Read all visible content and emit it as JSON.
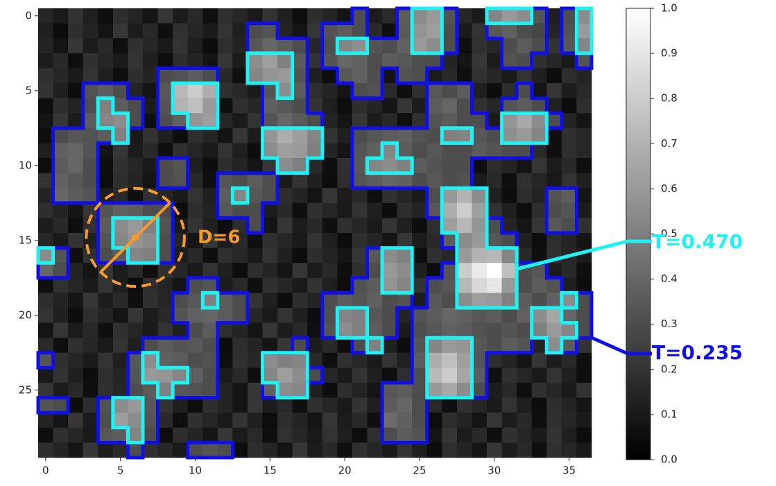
{
  "chart_data": {
    "type": "heatmap",
    "colormap": "gray",
    "values": [
      [
        0.15,
        0.1,
        0.2,
        0.12,
        0.05,
        0.18,
        0.14,
        0.08,
        0.21,
        0.11,
        0.16,
        0.06,
        0.19,
        0.15,
        0.1,
        0.2,
        0.12,
        0.05,
        0.18,
        0.14,
        0.08,
        0.3,
        0.11,
        0.16,
        0.36,
        0.55,
        0.6,
        0.33,
        0.15,
        0.1,
        0.52,
        0.6,
        0.55,
        0.33,
        0.12,
        0.3,
        0.55
      ],
      [
        0.12,
        0.05,
        0.18,
        0.14,
        0.08,
        0.21,
        0.11,
        0.16,
        0.06,
        0.19,
        0.15,
        0.1,
        0.2,
        0.12,
        0.3,
        0.33,
        0.14,
        0.08,
        0.21,
        0.32,
        0.36,
        0.3,
        0.16,
        0.06,
        0.35,
        0.58,
        0.62,
        0.3,
        0.1,
        0.2,
        0.34,
        0.38,
        0.3,
        0.28,
        0.14,
        0.32,
        0.6
      ],
      [
        0.14,
        0.08,
        0.21,
        0.11,
        0.16,
        0.06,
        0.19,
        0.15,
        0.1,
        0.2,
        0.12,
        0.05,
        0.18,
        0.14,
        0.34,
        0.4,
        0.36,
        0.3,
        0.15,
        0.3,
        0.52,
        0.56,
        0.33,
        0.3,
        0.38,
        0.6,
        0.55,
        0.3,
        0.06,
        0.19,
        0.15,
        0.3,
        0.36,
        0.3,
        0.2,
        0.34,
        0.52
      ],
      [
        0.11,
        0.16,
        0.06,
        0.19,
        0.15,
        0.1,
        0.2,
        0.12,
        0.05,
        0.18,
        0.14,
        0.08,
        0.21,
        0.11,
        0.55,
        0.62,
        0.5,
        0.35,
        0.2,
        0.33,
        0.4,
        0.38,
        0.3,
        0.36,
        0.34,
        0.3,
        0.3,
        0.14,
        0.08,
        0.21,
        0.11,
        0.32,
        0.3,
        0.19,
        0.15,
        0.1,
        0.33
      ],
      [
        0.19,
        0.15,
        0.1,
        0.2,
        0.12,
        0.05,
        0.18,
        0.14,
        0.3,
        0.32,
        0.36,
        0.3,
        0.16,
        0.06,
        0.52,
        0.58,
        0.6,
        0.33,
        0.12,
        0.05,
        0.34,
        0.38,
        0.3,
        0.08,
        0.32,
        0.3,
        0.11,
        0.16,
        0.06,
        0.19,
        0.15,
        0.1,
        0.2,
        0.12,
        0.05,
        0.18,
        0.14
      ],
      [
        0.2,
        0.12,
        0.05,
        0.32,
        0.36,
        0.3,
        0.14,
        0.08,
        0.34,
        0.72,
        0.8,
        0.68,
        0.19,
        0.15,
        0.1,
        0.33,
        0.55,
        0.36,
        0.18,
        0.14,
        0.08,
        0.3,
        0.32,
        0.16,
        0.06,
        0.19,
        0.34,
        0.3,
        0.36,
        0.12,
        0.05,
        0.18,
        0.3,
        0.08,
        0.21,
        0.11,
        0.16
      ],
      [
        0.05,
        0.18,
        0.14,
        0.3,
        0.5,
        0.36,
        0.3,
        0.11,
        0.33,
        0.7,
        0.75,
        0.6,
        0.06,
        0.19,
        0.15,
        0.38,
        0.34,
        0.3,
        0.2,
        0.12,
        0.05,
        0.18,
        0.14,
        0.08,
        0.21,
        0.11,
        0.36,
        0.4,
        0.3,
        0.19,
        0.15,
        0.33,
        0.36,
        0.3,
        0.12,
        0.05,
        0.18
      ],
      [
        0.08,
        0.21,
        0.11,
        0.36,
        0.52,
        0.55,
        0.3,
        0.06,
        0.3,
        0.38,
        0.58,
        0.62,
        0.15,
        0.1,
        0.2,
        0.33,
        0.4,
        0.35,
        0.3,
        0.14,
        0.08,
        0.21,
        0.11,
        0.16,
        0.06,
        0.19,
        0.33,
        0.36,
        0.3,
        0.3,
        0.1,
        0.58,
        0.66,
        0.55,
        0.3,
        0.14,
        0.08
      ],
      [
        0.06,
        0.3,
        0.34,
        0.32,
        0.36,
        0.5,
        0.1,
        0.2,
        0.12,
        0.05,
        0.18,
        0.14,
        0.08,
        0.21,
        0.11,
        0.58,
        0.68,
        0.62,
        0.52,
        0.2,
        0.12,
        0.3,
        0.34,
        0.36,
        0.38,
        0.32,
        0.3,
        0.5,
        0.52,
        0.34,
        0.3,
        0.56,
        0.6,
        0.52,
        0.06,
        0.19,
        0.15
      ],
      [
        0.12,
        0.38,
        0.4,
        0.33,
        0.08,
        0.21,
        0.11,
        0.16,
        0.06,
        0.19,
        0.15,
        0.1,
        0.2,
        0.12,
        0.05,
        0.55,
        0.62,
        0.6,
        0.5,
        0.14,
        0.08,
        0.33,
        0.38,
        0.52,
        0.36,
        0.3,
        0.34,
        0.3,
        0.3,
        0.36,
        0.33,
        0.3,
        0.3,
        0.16,
        0.06,
        0.19,
        0.15
      ],
      [
        0.05,
        0.36,
        0.4,
        0.3,
        0.06,
        0.19,
        0.15,
        0.1,
        0.3,
        0.33,
        0.12,
        0.05,
        0.18,
        0.14,
        0.08,
        0.21,
        0.55,
        0.5,
        0.16,
        0.06,
        0.19,
        0.34,
        0.52,
        0.55,
        0.5,
        0.36,
        0.33,
        0.3,
        0.3,
        0.05,
        0.18,
        0.14,
        0.08,
        0.21,
        0.11,
        0.16,
        0.06
      ],
      [
        0.2,
        0.38,
        0.34,
        0.3,
        0.05,
        0.18,
        0.14,
        0.08,
        0.3,
        0.32,
        0.16,
        0.06,
        0.33,
        0.3,
        0.36,
        0.3,
        0.1,
        0.2,
        0.12,
        0.05,
        0.18,
        0.33,
        0.36,
        0.4,
        0.38,
        0.3,
        0.34,
        0.3,
        0.32,
        0.11,
        0.16,
        0.06,
        0.19,
        0.15,
        0.1,
        0.2,
        0.12
      ],
      [
        0.14,
        0.4,
        0.36,
        0.33,
        0.11,
        0.16,
        0.06,
        0.19,
        0.15,
        0.1,
        0.2,
        0.12,
        0.36,
        0.52,
        0.34,
        0.3,
        0.18,
        0.14,
        0.08,
        0.21,
        0.11,
        0.16,
        0.06,
        0.19,
        0.15,
        0.1,
        0.3,
        0.6,
        0.7,
        0.55,
        0.12,
        0.05,
        0.18,
        0.14,
        0.32,
        0.36,
        0.08
      ],
      [
        0.18,
        0.14,
        0.08,
        0.21,
        0.33,
        0.38,
        0.36,
        0.3,
        0.3,
        0.05,
        0.18,
        0.14,
        0.34,
        0.3,
        0.3,
        0.11,
        0.16,
        0.06,
        0.19,
        0.15,
        0.1,
        0.2,
        0.12,
        0.05,
        0.18,
        0.14,
        0.34,
        0.68,
        0.8,
        0.62,
        0.2,
        0.12,
        0.05,
        0.18,
        0.3,
        0.33,
        0.11
      ],
      [
        0.11,
        0.16,
        0.06,
        0.19,
        0.36,
        0.55,
        0.6,
        0.5,
        0.33,
        0.1,
        0.2,
        0.12,
        0.05,
        0.18,
        0.3,
        0.08,
        0.21,
        0.11,
        0.16,
        0.06,
        0.19,
        0.15,
        0.1,
        0.2,
        0.12,
        0.05,
        0.18,
        0.62,
        0.72,
        0.58,
        0.3,
        0.14,
        0.08,
        0.21,
        0.34,
        0.3,
        0.19
      ],
      [
        0.15,
        0.1,
        0.2,
        0.12,
        0.33,
        0.52,
        0.58,
        0.55,
        0.3,
        0.14,
        0.08,
        0.21,
        0.11,
        0.16,
        0.06,
        0.19,
        0.15,
        0.1,
        0.2,
        0.12,
        0.05,
        0.18,
        0.14,
        0.08,
        0.21,
        0.11,
        0.16,
        0.36,
        0.55,
        0.6,
        0.34,
        0.3,
        0.12,
        0.05,
        0.18,
        0.14,
        0.08
      ],
      [
        0.55,
        0.33,
        0.06,
        0.19,
        0.3,
        0.36,
        0.52,
        0.5,
        0.3,
        0.11,
        0.16,
        0.06,
        0.19,
        0.15,
        0.1,
        0.2,
        0.12,
        0.05,
        0.18,
        0.14,
        0.08,
        0.21,
        0.34,
        0.55,
        0.5,
        0.06,
        0.19,
        0.15,
        0.6,
        0.7,
        0.72,
        0.52,
        0.16,
        0.06,
        0.19,
        0.15,
        0.1
      ],
      [
        0.4,
        0.3,
        0.14,
        0.08,
        0.21,
        0.11,
        0.16,
        0.06,
        0.19,
        0.15,
        0.1,
        0.2,
        0.12,
        0.05,
        0.18,
        0.14,
        0.08,
        0.21,
        0.11,
        0.16,
        0.06,
        0.19,
        0.3,
        0.6,
        0.55,
        0.12,
        0.05,
        0.33,
        0.8,
        0.92,
        1.0,
        0.75,
        0.3,
        0.34,
        0.11,
        0.16,
        0.06
      ],
      [
        0.06,
        0.19,
        0.15,
        0.1,
        0.2,
        0.12,
        0.05,
        0.18,
        0.14,
        0.08,
        0.3,
        0.33,
        0.11,
        0.16,
        0.06,
        0.19,
        0.15,
        0.1,
        0.2,
        0.12,
        0.05,
        0.32,
        0.36,
        0.58,
        0.52,
        0.2,
        0.3,
        0.34,
        0.72,
        0.85,
        0.9,
        0.6,
        0.3,
        0.36,
        0.33,
        0.12,
        0.05
      ],
      [
        0.18,
        0.14,
        0.08,
        0.21,
        0.11,
        0.16,
        0.06,
        0.19,
        0.15,
        0.3,
        0.34,
        0.5,
        0.36,
        0.3,
        0.2,
        0.12,
        0.05,
        0.18,
        0.14,
        0.3,
        0.36,
        0.33,
        0.38,
        0.3,
        0.32,
        0.11,
        0.34,
        0.3,
        0.55,
        0.62,
        0.6,
        0.5,
        0.36,
        0.3,
        0.38,
        0.55,
        0.3
      ],
      [
        0.2,
        0.12,
        0.05,
        0.18,
        0.14,
        0.08,
        0.21,
        0.11,
        0.16,
        0.33,
        0.38,
        0.4,
        0.36,
        0.3,
        0.15,
        0.1,
        0.2,
        0.12,
        0.05,
        0.3,
        0.52,
        0.5,
        0.34,
        0.3,
        0.14,
        0.32,
        0.36,
        0.4,
        0.38,
        0.34,
        0.36,
        0.3,
        0.38,
        0.55,
        0.65,
        0.4,
        0.3
      ],
      [
        0.08,
        0.21,
        0.11,
        0.16,
        0.06,
        0.19,
        0.15,
        0.1,
        0.2,
        0.12,
        0.3,
        0.36,
        0.18,
        0.14,
        0.08,
        0.21,
        0.11,
        0.16,
        0.06,
        0.33,
        0.55,
        0.5,
        0.36,
        0.3,
        0.1,
        0.3,
        0.34,
        0.38,
        0.36,
        0.32,
        0.3,
        0.33,
        0.3,
        0.5,
        0.6,
        0.52,
        0.3
      ],
      [
        0.16,
        0.06,
        0.19,
        0.15,
        0.1,
        0.2,
        0.12,
        0.3,
        0.36,
        0.33,
        0.34,
        0.3,
        0.05,
        0.18,
        0.14,
        0.08,
        0.21,
        0.3,
        0.11,
        0.16,
        0.06,
        0.3,
        0.5,
        0.12,
        0.05,
        0.33,
        0.52,
        0.6,
        0.58,
        0.34,
        0.3,
        0.36,
        0.33,
        0.14,
        0.55,
        0.36,
        0.2
      ],
      [
        0.33,
        0.19,
        0.15,
        0.1,
        0.2,
        0.12,
        0.34,
        0.55,
        0.38,
        0.36,
        0.3,
        0.32,
        0.06,
        0.19,
        0.15,
        0.55,
        0.5,
        0.52,
        0.16,
        0.06,
        0.19,
        0.15,
        0.1,
        0.2,
        0.12,
        0.36,
        0.68,
        0.75,
        0.62,
        0.33,
        0.18,
        0.14,
        0.08,
        0.21,
        0.11,
        0.16,
        0.06
      ],
      [
        0.1,
        0.2,
        0.12,
        0.05,
        0.18,
        0.14,
        0.33,
        0.6,
        0.58,
        0.52,
        0.38,
        0.3,
        0.11,
        0.16,
        0.06,
        0.52,
        0.62,
        0.55,
        0.3,
        0.15,
        0.1,
        0.2,
        0.12,
        0.05,
        0.18,
        0.3,
        0.72,
        0.8,
        0.65,
        0.36,
        0.06,
        0.19,
        0.15,
        0.1,
        0.2,
        0.12,
        0.05
      ],
      [
        0.21,
        0.11,
        0.16,
        0.06,
        0.19,
        0.15,
        0.3,
        0.36,
        0.5,
        0.34,
        0.33,
        0.3,
        0.14,
        0.08,
        0.21,
        0.38,
        0.55,
        0.52,
        0.12,
        0.05,
        0.18,
        0.14,
        0.08,
        0.34,
        0.36,
        0.3,
        0.6,
        0.66,
        0.55,
        0.3,
        0.11,
        0.16,
        0.06,
        0.19,
        0.15,
        0.1,
        0.2
      ],
      [
        0.33,
        0.3,
        0.05,
        0.18,
        0.32,
        0.55,
        0.6,
        0.34,
        0.2,
        0.12,
        0.05,
        0.18,
        0.14,
        0.08,
        0.21,
        0.11,
        0.16,
        0.06,
        0.19,
        0.15,
        0.1,
        0.2,
        0.12,
        0.36,
        0.4,
        0.3,
        0.16,
        0.06,
        0.19,
        0.15,
        0.1,
        0.2,
        0.12,
        0.05,
        0.18,
        0.14,
        0.08
      ],
      [
        0.14,
        0.08,
        0.21,
        0.11,
        0.3,
        0.62,
        0.55,
        0.33,
        0.16,
        0.06,
        0.19,
        0.15,
        0.1,
        0.2,
        0.12,
        0.05,
        0.18,
        0.14,
        0.08,
        0.21,
        0.11,
        0.16,
        0.06,
        0.42,
        0.38,
        0.3,
        0.05,
        0.18,
        0.14,
        0.08,
        0.21,
        0.11,
        0.16,
        0.06,
        0.19,
        0.15,
        0.1
      ],
      [
        0.06,
        0.19,
        0.15,
        0.1,
        0.34,
        0.36,
        0.52,
        0.3,
        0.05,
        0.18,
        0.14,
        0.08,
        0.21,
        0.11,
        0.16,
        0.06,
        0.19,
        0.15,
        0.1,
        0.2,
        0.12,
        0.05,
        0.18,
        0.3,
        0.36,
        0.33,
        0.08,
        0.21,
        0.11,
        0.16,
        0.06,
        0.19,
        0.15,
        0.1,
        0.2,
        0.12,
        0.05
      ],
      [
        0.18,
        0.14,
        0.08,
        0.21,
        0.11,
        0.16,
        0.3,
        0.19,
        0.15,
        0.1,
        0.3,
        0.33,
        0.3,
        0.05,
        0.18,
        0.14,
        0.08,
        0.21,
        0.11,
        0.16,
        0.06,
        0.19,
        0.15,
        0.1,
        0.2,
        0.12,
        0.05,
        0.18,
        0.14,
        0.08,
        0.21,
        0.11,
        0.16,
        0.06,
        0.19,
        0.15,
        0.1
      ]
    ],
    "xlim": [
      -0.5,
      36.5
    ],
    "ylim": [
      29.5,
      -0.5
    ],
    "xticks": [
      0,
      5,
      10,
      15,
      20,
      25,
      30,
      35
    ],
    "yticks": [
      0,
      5,
      10,
      15,
      20,
      25
    ],
    "colorbar": {
      "lim": [
        0,
        1
      ],
      "ticks": [
        {
          "value": 0,
          "label": "0.0"
        },
        {
          "value": 0.1,
          "label": "0.1"
        },
        {
          "value": 0.2,
          "label": "0.2"
        },
        {
          "value": 0.3,
          "label": "0.3"
        },
        {
          "value": 0.4,
          "label": "0.4"
        },
        {
          "value": 0.5,
          "label": "0.5"
        },
        {
          "value": 0.6,
          "label": "0.6"
        },
        {
          "value": 0.7,
          "label": "0.7"
        },
        {
          "value": 0.8,
          "label": "0.8"
        },
        {
          "value": 0.9,
          "label": "0.9"
        },
        {
          "value": 1,
          "label": "1.0"
        }
      ]
    },
    "contours": [
      {
        "value": 0.235,
        "label": "T=0.235",
        "color": "#1010e6"
      },
      {
        "value": 0.47,
        "label": "T=0.470",
        "color": "#1ef2f2"
      }
    ],
    "annotations": [
      {
        "value": 6,
        "label": "D=6",
        "color": "#f79a2a"
      }
    ]
  }
}
